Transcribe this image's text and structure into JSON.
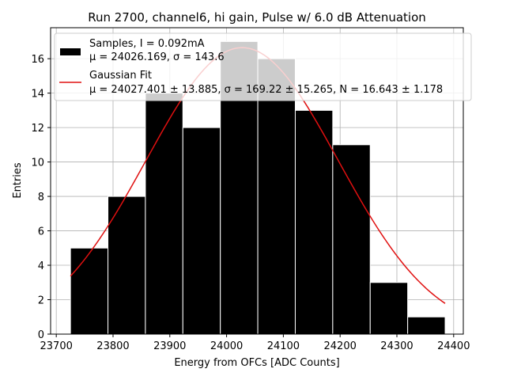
{
  "chart_data": {
    "type": "bar",
    "title": "Run 2700, channel6, hi gain, Pulse w/ 6.0 dB Attenuation",
    "xlabel": "Energy from OFCs [ADC Counts]",
    "ylabel": "Entries",
    "xlim": [
      23690,
      24417
    ],
    "ylim": [
      0,
      17.8
    ],
    "xticks": [
      23700,
      23800,
      23900,
      24000,
      24100,
      24200,
      24300,
      24400
    ],
    "yticks": [
      0,
      2,
      4,
      6,
      8,
      10,
      12,
      14,
      16
    ],
    "grid": true,
    "legend_position": "top-right",
    "histogram": {
      "bin_edges": [
        23725,
        23791,
        23857,
        23923,
        23989,
        24055,
        24121,
        24187,
        24253,
        24319,
        24385
      ],
      "counts": [
        5,
        8,
        14,
        12,
        17,
        16,
        13,
        11,
        3,
        1
      ],
      "color": "#000000"
    },
    "fit": {
      "model": "gaussian",
      "mu": 24027.401,
      "sigma": 169.22,
      "N": 16.643,
      "x_range": [
        23725,
        24385
      ],
      "color": "#e01010"
    },
    "legend": [
      {
        "line1": "Samples, I = 0.092mA",
        "line2": "μ = 24026.169, σ = 143.6",
        "swatch": "bar",
        "color": "#000000"
      },
      {
        "line1": "Gaussian Fit",
        "line2": "μ = 24027.401 ± 13.885, σ = 169.22 ± 15.265, N = 16.643 ± 1.178",
        "swatch": "line",
        "color": "#e01010"
      }
    ]
  }
}
